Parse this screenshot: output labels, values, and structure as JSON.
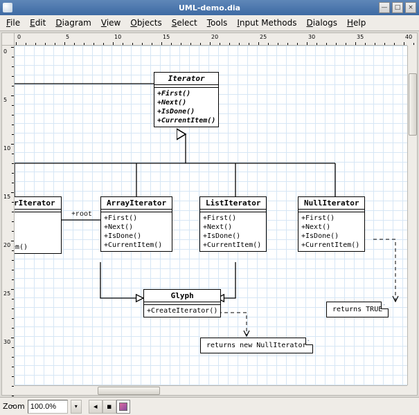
{
  "window": {
    "title": "UML-demo.dia",
    "minimize": "—",
    "maximize": "□",
    "close": "×"
  },
  "menu": {
    "items": [
      {
        "u": "F",
        "rest": "ile"
      },
      {
        "u": "E",
        "rest": "dit"
      },
      {
        "u": "D",
        "rest": "iagram"
      },
      {
        "u": "V",
        "rest": "iew"
      },
      {
        "u": "O",
        "rest": "bjects"
      },
      {
        "u": "S",
        "rest": "elect"
      },
      {
        "u": "T",
        "rest": "ools"
      },
      {
        "u": "I",
        "rest": "nput Methods"
      },
      {
        "u": "D",
        "rest": "ialogs"
      },
      {
        "u": "H",
        "rest": "elp"
      }
    ]
  },
  "ruler_h": [
    0,
    5,
    10,
    15,
    20,
    25,
    30,
    35,
    40
  ],
  "ruler_v": [
    0,
    5,
    10,
    15,
    20,
    25,
    30
  ],
  "classes": {
    "iterator": {
      "name": "Iterator",
      "ops": [
        "+First()",
        "+Next()",
        "+IsDone()",
        "+CurrentItem()"
      ],
      "italic": true
    },
    "eiterator": {
      "name": "rIterator",
      "ops": [
        "em()"
      ]
    },
    "arrayiterator": {
      "name": "ArrayIterator",
      "ops": [
        "+First()",
        "+Next()",
        "+IsDone()",
        "+CurrentItem()"
      ]
    },
    "listiterator": {
      "name": "ListIterator",
      "ops": [
        "+First()",
        "+Next()",
        "+IsDone()",
        "+CurrentItem()"
      ]
    },
    "nulliterator": {
      "name": "NullIterator",
      "ops": [
        "+First()",
        "+Next()",
        "+IsDone()",
        "+CurrentItem()"
      ]
    },
    "glyph": {
      "name": "Glyph",
      "ops": [
        "+CreateIterator()"
      ]
    }
  },
  "assoc": {
    "root": "+root"
  },
  "notes": {
    "null_note": "returns new NullIterator",
    "true_note": "returns TRUE"
  },
  "status": {
    "zoom_label": "Zoom",
    "zoom_value": "100.0%",
    "nav_prev": "◂",
    "nav_mid": "▪"
  }
}
